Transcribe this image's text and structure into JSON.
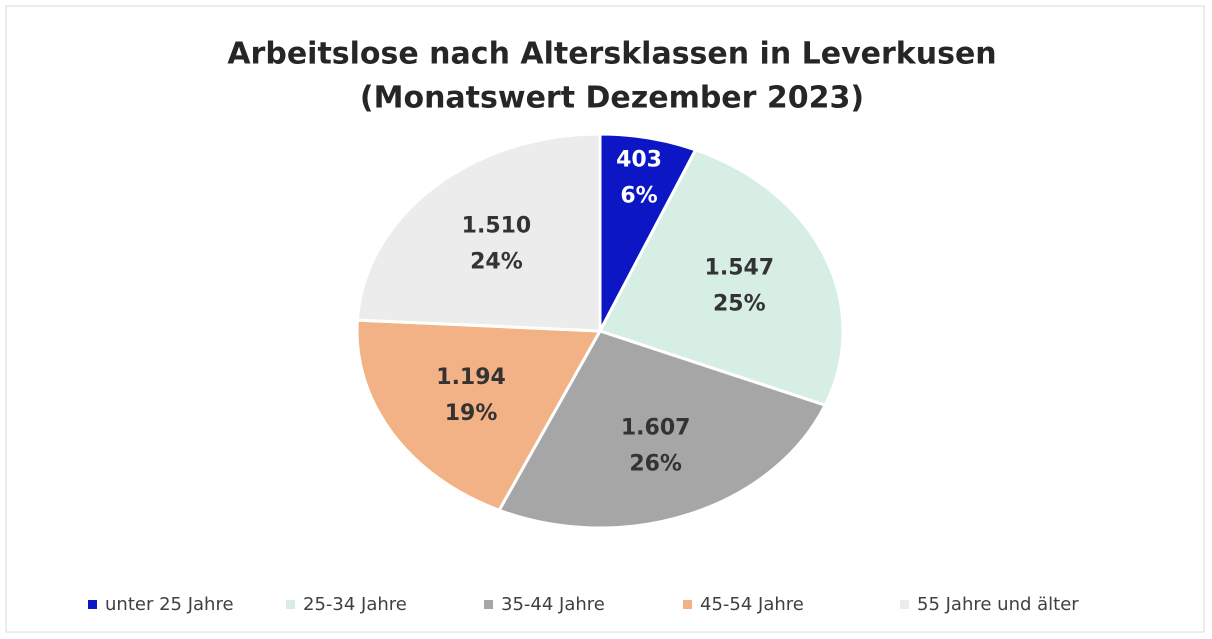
{
  "chart_data": {
    "type": "pie",
    "title_lines": [
      "Arbeitslose nach Altersklassen in Leverkusen",
      "(Monatswert Dezember 2023)"
    ],
    "categories": [
      "unter 25 Jahre",
      "25-34 Jahre",
      "35-44 Jahre",
      "45-54 Jahre",
      "55 Jahre und älter"
    ],
    "values": [
      403,
      1547,
      1607,
      1194,
      1510
    ],
    "value_labels": [
      "403",
      "1.547",
      "1.607",
      "1.194",
      "1.510"
    ],
    "percent_labels": [
      "6%",
      "25%",
      "26%",
      "19%",
      "24%"
    ],
    "colors": [
      "#0c16c4",
      "#d7eee5",
      "#a6a6a6",
      "#f3b285",
      "#ececec"
    ],
    "legend": "bottom"
  }
}
